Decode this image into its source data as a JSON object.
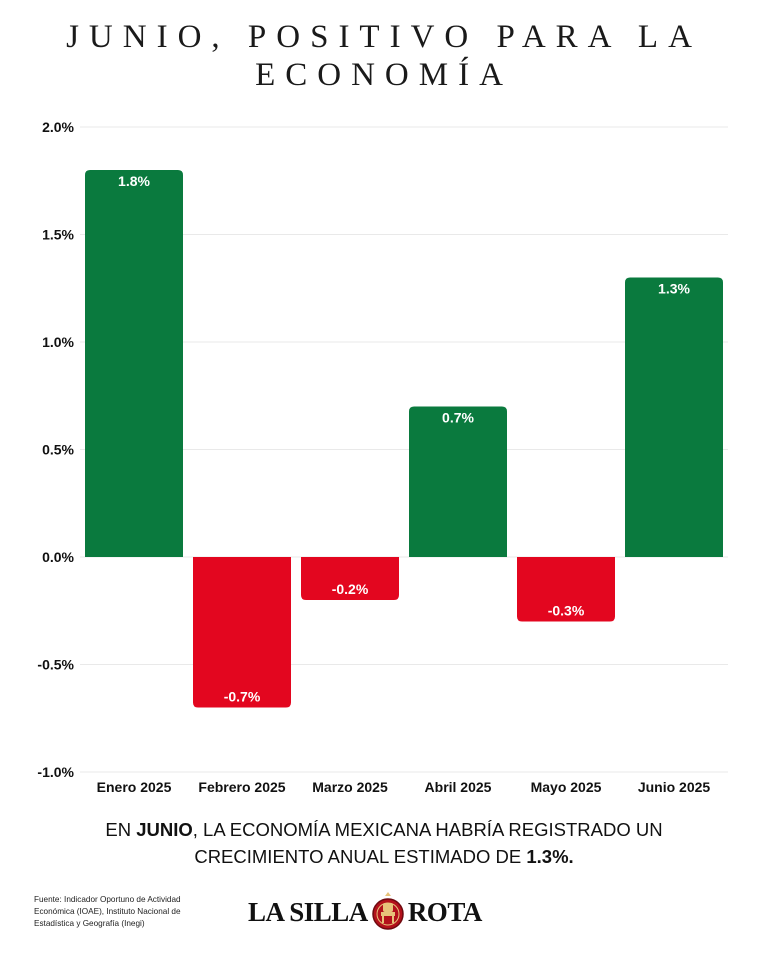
{
  "title_lines": [
    "JUNIO, POSITIVO PARA LA",
    "ECONOMÍA"
  ],
  "summary": {
    "part1": "EN ",
    "bold1": "JUNIO",
    "part2": ", LA ECONOMÍA MEXICANA HABRÍA REGISTRADO UN CRECIMIENTO ANUAL ESTIMADO DE ",
    "bold2": "1.3%."
  },
  "source": "Fuente: Indicador Oportuno de Actividad Económica (IOAE), Instituto Nacional de Estadística y Geografía (Inegi)",
  "logo": {
    "left": "LA SILLA",
    "right": "ROTA"
  },
  "colors": {
    "positive": "#0a7a3e",
    "negative": "#e3061f",
    "grid": "#e9e9e9",
    "logo_seal": "#b3111b"
  },
  "chart_data": {
    "type": "bar",
    "categories": [
      "Enero 2025",
      "Febrero 2025",
      "Marzo 2025",
      "Abril 2025",
      "Mayo 2025",
      "Junio 2025"
    ],
    "values": [
      1.8,
      -0.7,
      -0.2,
      0.7,
      -0.3,
      1.3
    ],
    "data_labels": [
      "1.8%",
      "-0.7%",
      "-0.2%",
      "0.7%",
      "-0.3%",
      "1.3%"
    ],
    "yticks": [
      2.0,
      1.5,
      1.0,
      0.5,
      0.0,
      -0.5,
      -1.0
    ],
    "ytick_labels": [
      "2.0%",
      "1.5%",
      "1.0%",
      "0.5%",
      "0.0%",
      "-0.5%",
      "-1.0%"
    ],
    "ylim": [
      -1.0,
      2.0
    ],
    "grid": true,
    "title": "",
    "xlabel": "",
    "ylabel": ""
  }
}
